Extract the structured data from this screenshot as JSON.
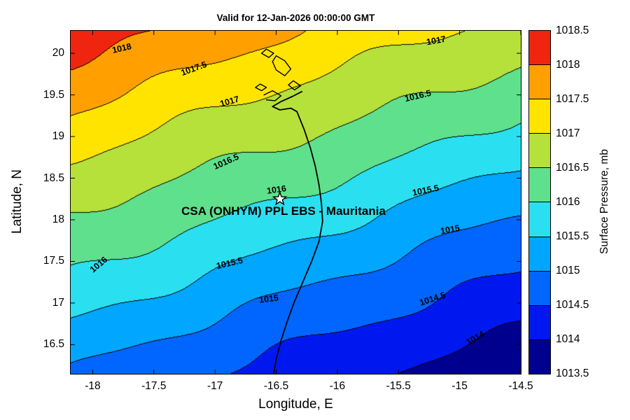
{
  "chart_data": {
    "type": "filled_contour_map",
    "title": "Valid for 12-Jan-2026 00:00:00 GMT",
    "xlabel": "Longitude, E",
    "ylabel": "Latitude, N",
    "xlim": [
      -18.18,
      -14.5
    ],
    "ylim": [
      16.15,
      20.27
    ],
    "xticks": [
      "-18",
      "-17.5",
      "-17",
      "-16.5",
      "-16",
      "-15.5",
      "-15",
      "-14.5"
    ],
    "xtick_values": [
      -18,
      -17.5,
      -17,
      -16.5,
      -16,
      -15.5,
      -15,
      -14.5
    ],
    "yticks": [
      "16.5",
      "17",
      "17.5",
      "18",
      "18.5",
      "19",
      "19.5",
      "20"
    ],
    "ytick_values": [
      16.5,
      17,
      17.5,
      18,
      18.5,
      19,
      19.5,
      20
    ],
    "contour_levels": [
      1013.5,
      1014,
      1014.5,
      1015,
      1015.5,
      1016,
      1016.5,
      1017,
      1017.5,
      1018,
      1018.5
    ],
    "band_colors": [
      "#00008f",
      "#0018f0",
      "#0066ff",
      "#00a6ff",
      "#2ae0f0",
      "#5fe08c",
      "#b6e03a",
      "#ffe400",
      "#ffa000",
      "#f0250f"
    ],
    "contour_line_color": "#000000",
    "field_model": {
      "base": 1015.85,
      "lon0": -16.25,
      "lat0": 18.2,
      "grad_lon": -0.4,
      "grad_lat": 0.8,
      "waves": [
        {
          "amp": 0.06,
          "k_lon": 3.6,
          "k_lat": 1.2,
          "phase": 0.7
        },
        {
          "amp": 0.04,
          "k_lon": 1.5,
          "k_lat": -2.3,
          "phase": 2.1
        },
        {
          "amp": 0.02,
          "k_lon": 6.5,
          "k_lat": 4.0,
          "phase": 0.3
        }
      ]
    },
    "contour_labels": [
      {
        "text": "1018",
        "lon": -17.76,
        "lat": 20.06,
        "rot": -13
      },
      {
        "text": "1017.5",
        "lon": -17.17,
        "lat": 19.82,
        "rot": -20
      },
      {
        "text": "1017",
        "lon": -16.88,
        "lat": 19.42,
        "rot": -16
      },
      {
        "text": "1017",
        "lon": -15.19,
        "lat": 20.15,
        "rot": -10
      },
      {
        "text": "1016.5",
        "lon": -15.34,
        "lat": 19.49,
        "rot": -13
      },
      {
        "text": "1016.5",
        "lon": -16.91,
        "lat": 18.7,
        "rot": -24
      },
      {
        "text": "1016",
        "lon": -16.5,
        "lat": 18.36,
        "rot": -8
      },
      {
        "text": "1016",
        "lon": -17.95,
        "lat": 17.46,
        "rot": -40
      },
      {
        "text": "1015.5",
        "lon": -15.28,
        "lat": 18.35,
        "rot": -11
      },
      {
        "text": "1015.5",
        "lon": -16.88,
        "lat": 17.48,
        "rot": -13
      },
      {
        "text": "1015",
        "lon": -15.08,
        "lat": 17.88,
        "rot": -10
      },
      {
        "text": "1015",
        "lon": -16.56,
        "lat": 17.05,
        "rot": -7
      },
      {
        "text": "1014.5",
        "lon": -15.22,
        "lat": 17.05,
        "rot": -18
      },
      {
        "text": "1014",
        "lon": -14.87,
        "lat": 16.58,
        "rot": -30
      }
    ],
    "annotation": {
      "text": "CSA (ONHYM) PPL EBS  - Mauritania",
      "lon": -16.44,
      "lat": 18.1
    },
    "marker": {
      "shape": "star",
      "lon": -16.47,
      "lat": 18.25,
      "fill": "#ffffff",
      "stroke": "#000000"
    },
    "colorbar": {
      "label": "Surface Pressure, mb",
      "ticks": [
        "1013.5",
        "1014",
        "1014.5",
        "1015",
        "1015.5",
        "1016",
        "1016.5",
        "1017",
        "1017.5",
        "1018",
        "1018.5"
      ],
      "tick_values": [
        1013.5,
        1014,
        1014.5,
        1015,
        1015.5,
        1016,
        1016.5,
        1017,
        1017.5,
        1018,
        1018.5
      ],
      "min": 1013.5,
      "max": 1018.5
    },
    "coastline": {
      "main": [
        [
          -16.29,
          19.54
        ],
        [
          -16.37,
          19.48
        ],
        [
          -16.46,
          19.42
        ],
        [
          -16.53,
          19.36
        ],
        [
          -16.47,
          19.32
        ],
        [
          -16.38,
          19.34
        ],
        [
          -16.33,
          19.3
        ],
        [
          -16.27,
          19.08
        ],
        [
          -16.22,
          18.86
        ],
        [
          -16.18,
          18.64
        ],
        [
          -16.15,
          18.42
        ],
        [
          -16.13,
          18.2
        ],
        [
          -16.12,
          17.98
        ],
        [
          -16.15,
          17.74
        ],
        [
          -16.21,
          17.5
        ],
        [
          -16.28,
          17.26
        ],
        [
          -16.35,
          17.02
        ],
        [
          -16.41,
          16.78
        ],
        [
          -16.46,
          16.55
        ],
        [
          -16.5,
          16.32
        ],
        [
          -16.52,
          16.15
        ]
      ],
      "islands": [
        [
          [
            -16.5,
            19.97
          ],
          [
            -16.43,
            19.91
          ],
          [
            -16.38,
            19.81
          ],
          [
            -16.43,
            19.73
          ],
          [
            -16.5,
            19.8
          ],
          [
            -16.53,
            19.9
          ]
        ],
        [
          [
            -16.58,
            20.05
          ],
          [
            -16.52,
            20.0
          ],
          [
            -16.56,
            19.95
          ],
          [
            -16.62,
            20.0
          ]
        ],
        [
          [
            -16.36,
            19.67
          ],
          [
            -16.3,
            19.61
          ],
          [
            -16.35,
            19.56
          ],
          [
            -16.4,
            19.62
          ]
        ],
        [
          [
            -16.63,
            19.63
          ],
          [
            -16.58,
            19.59
          ],
          [
            -16.62,
            19.55
          ],
          [
            -16.67,
            19.59
          ]
        ]
      ],
      "bay": [
        [
          -16.6,
          19.5
        ],
        [
          -16.53,
          19.55
        ],
        [
          -16.46,
          19.49
        ],
        [
          -16.51,
          19.43
        ],
        [
          -16.58,
          19.44
        ]
      ]
    }
  }
}
